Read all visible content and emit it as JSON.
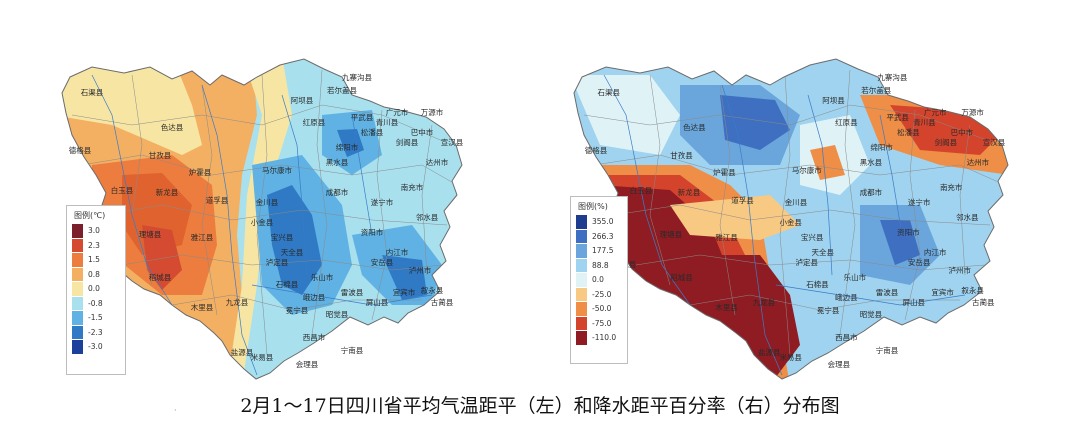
{
  "caption": "2月1～17日四川省平均气温距平（左）和降水距平百分率（右）分布图",
  "left_map": {
    "legend_title": "图例(℃)",
    "legend_ticks": [
      "3.0",
      "2.3",
      "1.5",
      "0.8",
      "0.0",
      "-0.8",
      "-1.5",
      "-2.3",
      "-3.0"
    ],
    "legend_colors": [
      "#7a1f2b",
      "#d44b32",
      "#ec7d3f",
      "#f4b062",
      "#f7e6a3",
      "#a8e0ee",
      "#5fb2e3",
      "#2f79c5",
      "#1b3f9a"
    ],
    "labels": [
      "石渠县",
      "色达县",
      "德格县",
      "甘孜县",
      "炉霍县",
      "白玉县",
      "新龙县",
      "道孚县",
      "巴塘县",
      "理塘县",
      "雅江县",
      "乡城县",
      "稻城县",
      "九龙县",
      "木里县",
      "盐源县",
      "红原县",
      "阿坝县",
      "若尔盖县",
      "九寨沟县",
      "松潘县",
      "黑水县",
      "马尔康市",
      "金川县",
      "小金县",
      "宝兴县",
      "天全县",
      "泸定县",
      "石棉县",
      "冕宁县",
      "西昌市",
      "会理县",
      "米易县",
      "宁南县",
      "昭觉县",
      "雷波县",
      "屏山县",
      "宜宾市",
      "泸州市",
      "叙永县",
      "古蔺县",
      "内江市",
      "资阳市",
      "遂宁市",
      "南充市",
      "广元市",
      "巴中市",
      "达州市",
      "万源市",
      "绵阳市",
      "平武县",
      "青川县",
      "剑阁县",
      "成都市",
      "乐山市",
      "峨边县",
      "宣汉县",
      "安岳县",
      "邻水县"
    ]
  },
  "right_map": {
    "legend_title": "图例(%)",
    "legend_ticks": [
      "355.0",
      "266.3",
      "177.5",
      "88.8",
      "0.0",
      "-25.0",
      "-50.0",
      "-75.0",
      "-110.0"
    ],
    "legend_colors": [
      "#1f3d8f",
      "#3f6fc0",
      "#6aa6dc",
      "#9fd3ef",
      "#dff3f7",
      "#f8c983",
      "#ee8e47",
      "#d4432c",
      "#8e1c22"
    ],
    "labels": [
      "石渠县",
      "色达县",
      "德格县",
      "甘孜县",
      "炉霍县",
      "白玉县",
      "新龙县",
      "道孚县",
      "巴塘县",
      "理塘县",
      "雅江县",
      "乡城县",
      "稻城县",
      "九龙县",
      "木里县",
      "盐源县",
      "红原县",
      "阿坝县",
      "若尔盖县",
      "九寨沟县",
      "松潘县",
      "黑水县",
      "马尔康市",
      "金川县",
      "小金县",
      "宝兴县",
      "天全县",
      "泸定县",
      "石棉县",
      "冕宁县",
      "西昌市",
      "会理县",
      "米易县",
      "宁南县",
      "昭觉县",
      "雷波县",
      "屏山县",
      "宜宾市",
      "泸州市",
      "叙永县",
      "古蔺县",
      "内江市",
      "资阳市",
      "遂宁市",
      "南充市",
      "广元市",
      "巴中市",
      "达州市",
      "万源市",
      "绵阳市",
      "平武县",
      "青川县",
      "剑阁县",
      "成都市",
      "乐山市",
      "峨边县",
      "宣汉县",
      "安岳县",
      "邻水县"
    ]
  }
}
